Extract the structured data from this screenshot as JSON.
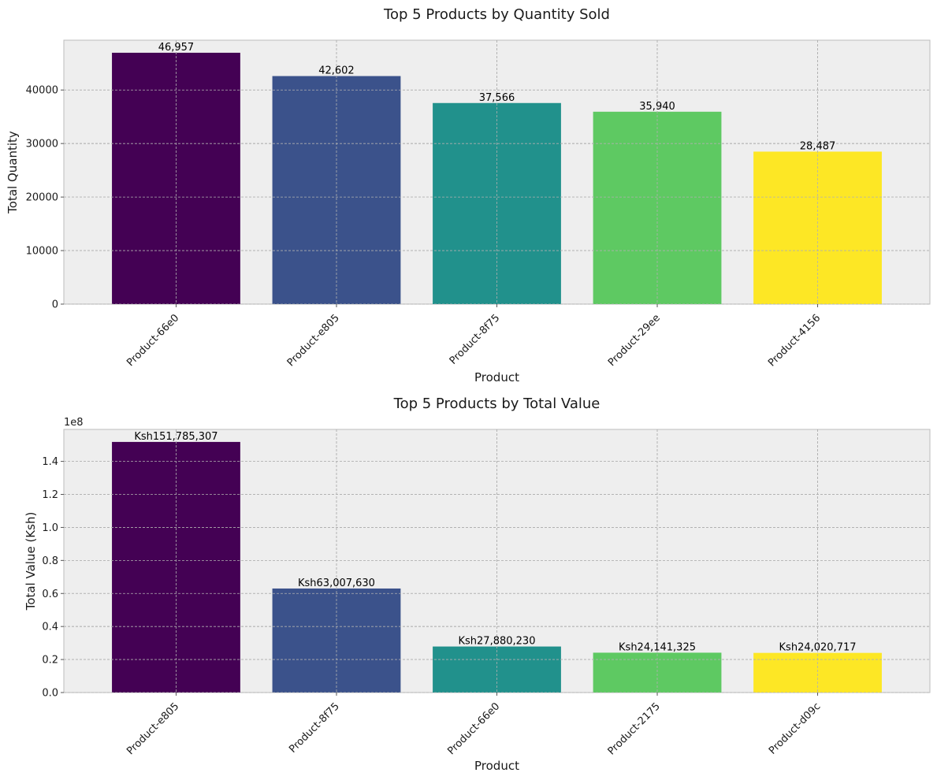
{
  "chart_data": [
    {
      "type": "bar",
      "title": "Top 5 Products by Quantity Sold",
      "xlabel": "Product",
      "ylabel": "Total Quantity",
      "categories": [
        "Product-66e0",
        "Product-e805",
        "Product-8f75",
        "Product-29ee",
        "Product-4156"
      ],
      "values": [
        46957,
        42602,
        37566,
        35940,
        28487
      ],
      "value_labels": [
        "46,957",
        "42,602",
        "37,566",
        "35,940",
        "28,487"
      ],
      "ylim": [
        0,
        49305
      ],
      "yticks": [
        0,
        10000,
        20000,
        30000,
        40000
      ],
      "ytick_labels": [
        "0",
        "10000",
        "20000",
        "30000",
        "40000"
      ],
      "colors": [
        "#440154",
        "#3b528b",
        "#21918c",
        "#5ec962",
        "#fde725"
      ],
      "grid": true
    },
    {
      "type": "bar",
      "title": "Top 5 Products by Total Value",
      "xlabel": "Product",
      "ylabel": "Total Value (Ksh)",
      "offset_text": "1e8",
      "categories": [
        "Product-e805",
        "Product-8f75",
        "Product-66e0",
        "Product-2175",
        "Product-d09c"
      ],
      "values": [
        151785307,
        63007630,
        27880230,
        24141325,
        24020717
      ],
      "value_labels": [
        "Ksh151,785,307",
        "Ksh63,007,630",
        "Ksh27,880,230",
        "Ksh24,141,325",
        "Ksh24,020,717"
      ],
      "ylim": [
        0,
        159374572
      ],
      "yticks": [
        0,
        20000000,
        40000000,
        60000000,
        80000000,
        100000000,
        120000000,
        140000000
      ],
      "ytick_labels": [
        "0.0",
        "0.2",
        "0.4",
        "0.6",
        "0.8",
        "1.0",
        "1.2",
        "1.4"
      ],
      "colors": [
        "#440154",
        "#3b528b",
        "#21918c",
        "#5ec962",
        "#fde725"
      ],
      "grid": true
    }
  ]
}
